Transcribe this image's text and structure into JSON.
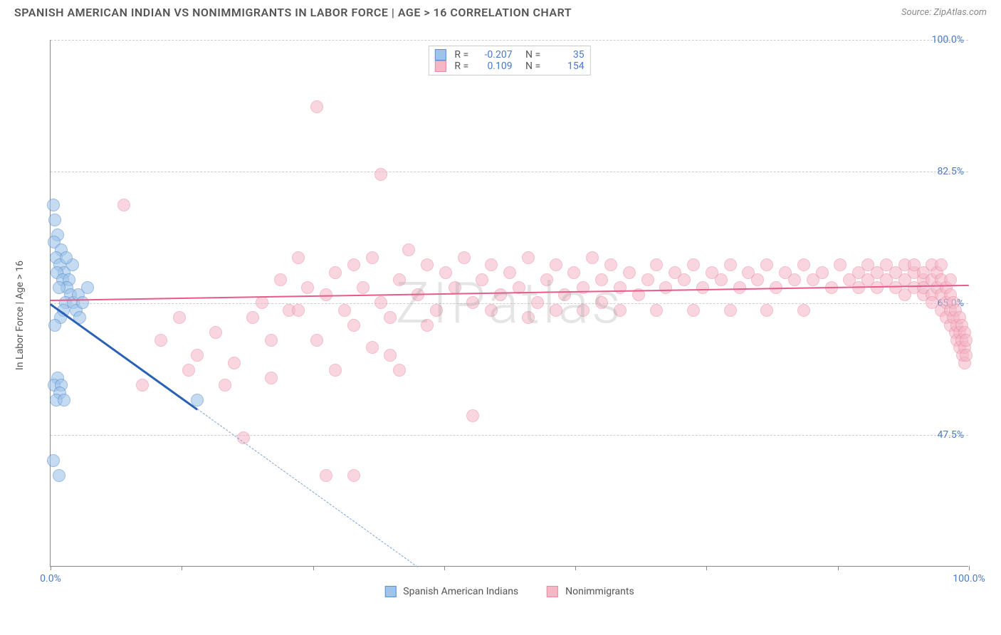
{
  "title": "SPANISH AMERICAN INDIAN VS NONIMMIGRANTS IN LABOR FORCE | AGE > 16 CORRELATION CHART",
  "source": "Source: ZipAtlas.com",
  "watermark": "ZIPatlas",
  "yaxis_label": "In Labor Force | Age > 16",
  "chart": {
    "type": "scatter",
    "background_color": "#ffffff",
    "grid_color": "#cccccc",
    "axis_color": "#888888",
    "xlim": [
      0,
      100
    ],
    "ylim": [
      30,
      100
    ],
    "xtick_positions": [
      0,
      14.3,
      28.6,
      42.9,
      57.1,
      71.4,
      85.7,
      100
    ],
    "xtick_labels": {
      "0": "0.0%",
      "100": "100.0%"
    },
    "ytick_positions": [
      47.5,
      65.0,
      82.5,
      100.0
    ],
    "ytick_labels": [
      "47.5%",
      "65.0%",
      "82.5%",
      "100.0%"
    ],
    "marker_radius": 9,
    "marker_border_width": 1.5,
    "series": [
      {
        "name": "Spanish American Indians",
        "legend_label": "Spanish American Indians",
        "fill": "#9fc4ea",
        "stroke": "#5a8fd0",
        "fill_opacity": 0.6,
        "R": "-0.207",
        "N": "35",
        "trend": {
          "x1": 0,
          "y1": 65,
          "x2": 16,
          "y2": 51,
          "extrap_x2": 40,
          "extrap_y2": 30,
          "color": "#2962b5",
          "width": 2.5,
          "dash_color": "#7aa4d6"
        },
        "points": [
          [
            0.3,
            78
          ],
          [
            0.5,
            76
          ],
          [
            0.8,
            74
          ],
          [
            0.4,
            73
          ],
          [
            1.2,
            72
          ],
          [
            0.6,
            71
          ],
          [
            1.0,
            70
          ],
          [
            1.5,
            69
          ],
          [
            0.7,
            69
          ],
          [
            1.3,
            68
          ],
          [
            2.0,
            68
          ],
          [
            1.8,
            67
          ],
          [
            0.9,
            67
          ],
          [
            2.2,
            66
          ],
          [
            1.6,
            65
          ],
          [
            2.5,
            65
          ],
          [
            1.4,
            64
          ],
          [
            2.8,
            64
          ],
          [
            3.0,
            66
          ],
          [
            3.5,
            65
          ],
          [
            1.1,
            63
          ],
          [
            0.5,
            62
          ],
          [
            0.8,
            55
          ],
          [
            0.4,
            54
          ],
          [
            1.2,
            54
          ],
          [
            1.0,
            53
          ],
          [
            0.6,
            52
          ],
          [
            1.5,
            52
          ],
          [
            0.3,
            44
          ],
          [
            0.9,
            42
          ],
          [
            16,
            52
          ],
          [
            4,
            67
          ],
          [
            3.2,
            63
          ],
          [
            2.4,
            70
          ],
          [
            1.7,
            71
          ]
        ]
      },
      {
        "name": "Nonimmigrants",
        "legend_label": "Nonimmigrants",
        "fill": "#f5b6c5",
        "stroke": "#e88aa3",
        "fill_opacity": 0.55,
        "R": "0.109",
        "N": "154",
        "trend": {
          "x1": 0,
          "y1": 65.5,
          "x2": 100,
          "y2": 67.5,
          "color": "#e85a8a",
          "width": 2
        },
        "points": [
          [
            8,
            78
          ],
          [
            10,
            54
          ],
          [
            12,
            60
          ],
          [
            14,
            63
          ],
          [
            15,
            56
          ],
          [
            16,
            58
          ],
          [
            18,
            61
          ],
          [
            20,
            57
          ],
          [
            21,
            47
          ],
          [
            22,
            63
          ],
          [
            23,
            65
          ],
          [
            24,
            60
          ],
          [
            25,
            68
          ],
          [
            26,
            64
          ],
          [
            27,
            71
          ],
          [
            28,
            67
          ],
          [
            29,
            91
          ],
          [
            30,
            66
          ],
          [
            30,
            42
          ],
          [
            31,
            69
          ],
          [
            32,
            64
          ],
          [
            33,
            70
          ],
          [
            33,
            42
          ],
          [
            34,
            67
          ],
          [
            35,
            71
          ],
          [
            36,
            65
          ],
          [
            36,
            82
          ],
          [
            37,
            58
          ],
          [
            38,
            68
          ],
          [
            38,
            56
          ],
          [
            39,
            72
          ],
          [
            40,
            66
          ],
          [
            41,
            70
          ],
          [
            42,
            64
          ],
          [
            43,
            69
          ],
          [
            44,
            67
          ],
          [
            45,
            71
          ],
          [
            46,
            65
          ],
          [
            46,
            50
          ],
          [
            47,
            68
          ],
          [
            48,
            70
          ],
          [
            49,
            66
          ],
          [
            50,
            69
          ],
          [
            51,
            67
          ],
          [
            52,
            71
          ],
          [
            53,
            65
          ],
          [
            54,
            68
          ],
          [
            55,
            70
          ],
          [
            56,
            66
          ],
          [
            57,
            69
          ],
          [
            58,
            67
          ],
          [
            59,
            71
          ],
          [
            60,
            68
          ],
          [
            60,
            65
          ],
          [
            61,
            70
          ],
          [
            62,
            67
          ],
          [
            63,
            69
          ],
          [
            64,
            66
          ],
          [
            65,
            68
          ],
          [
            66,
            70
          ],
          [
            67,
            67
          ],
          [
            68,
            69
          ],
          [
            69,
            68
          ],
          [
            70,
            70
          ],
          [
            71,
            67
          ],
          [
            72,
            69
          ],
          [
            73,
            68
          ],
          [
            74,
            70
          ],
          [
            75,
            67
          ],
          [
            76,
            69
          ],
          [
            77,
            68
          ],
          [
            78,
            70
          ],
          [
            79,
            67
          ],
          [
            80,
            69
          ],
          [
            81,
            68
          ],
          [
            82,
            70
          ],
          [
            83,
            68
          ],
          [
            84,
            69
          ],
          [
            85,
            67
          ],
          [
            86,
            70
          ],
          [
            87,
            68
          ],
          [
            88,
            69
          ],
          [
            88,
            67
          ],
          [
            89,
            70
          ],
          [
            89,
            68
          ],
          [
            90,
            69
          ],
          [
            90,
            67
          ],
          [
            91,
            70
          ],
          [
            91,
            68
          ],
          [
            92,
            69
          ],
          [
            92,
            67
          ],
          [
            93,
            70
          ],
          [
            93,
            68
          ],
          [
            93,
            66
          ],
          [
            94,
            69
          ],
          [
            94,
            67
          ],
          [
            94,
            70
          ],
          [
            95,
            68
          ],
          [
            95,
            66
          ],
          [
            95,
            69
          ],
          [
            95,
            67
          ],
          [
            96,
            70
          ],
          [
            96,
            68
          ],
          [
            96,
            66
          ],
          [
            96,
            65
          ],
          [
            96.5,
            69
          ],
          [
            96.5,
            67
          ],
          [
            97,
            68
          ],
          [
            97,
            66
          ],
          [
            97,
            64
          ],
          [
            97,
            70
          ],
          [
            97.5,
            67
          ],
          [
            97.5,
            65
          ],
          [
            97.5,
            63
          ],
          [
            98,
            66
          ],
          [
            98,
            64
          ],
          [
            98,
            68
          ],
          [
            98,
            62
          ],
          [
            98.3,
            65
          ],
          [
            98.3,
            63
          ],
          [
            98.5,
            61
          ],
          [
            98.5,
            64
          ],
          [
            98.7,
            62
          ],
          [
            98.7,
            60
          ],
          [
            99,
            63
          ],
          [
            99,
            61
          ],
          [
            99,
            59
          ],
          [
            99.2,
            62
          ],
          [
            99.2,
            60
          ],
          [
            99.3,
            58
          ],
          [
            99.5,
            61
          ],
          [
            99.5,
            59
          ],
          [
            99.5,
            57
          ],
          [
            99.7,
            60
          ],
          [
            99.7,
            58
          ],
          [
            33,
            62
          ],
          [
            37,
            63
          ],
          [
            41,
            62
          ],
          [
            27,
            64
          ],
          [
            24,
            55
          ],
          [
            19,
            54
          ],
          [
            29,
            60
          ],
          [
            31,
            56
          ],
          [
            35,
            59
          ],
          [
            52,
            63
          ],
          [
            48,
            64
          ],
          [
            55,
            64
          ],
          [
            58,
            64
          ],
          [
            62,
            64
          ],
          [
            66,
            64
          ],
          [
            70,
            64
          ],
          [
            74,
            64
          ],
          [
            78,
            64
          ],
          [
            82,
            64
          ]
        ]
      }
    ]
  }
}
